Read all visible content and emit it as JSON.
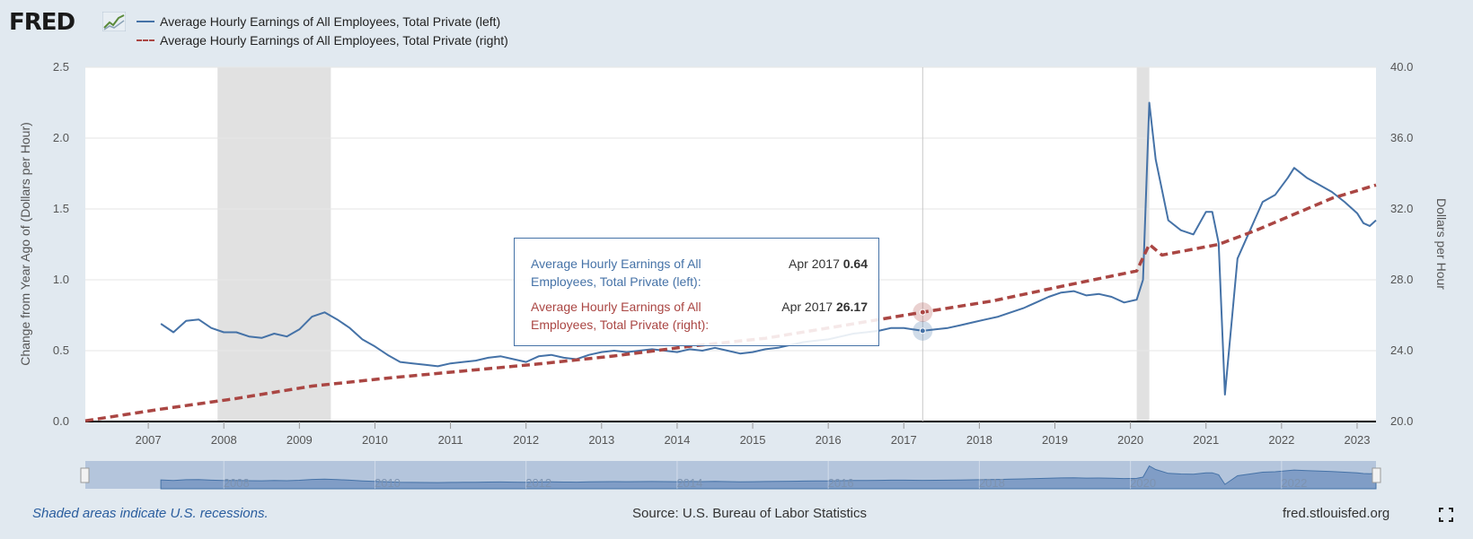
{
  "brand": "FRED",
  "legend": [
    {
      "label": "Average Hourly Earnings of All Employees, Total Private (left)",
      "color": "#4572a7",
      "dash": "solid"
    },
    {
      "label": "Average Hourly Earnings of All Employees, Total Private (right)",
      "color": "#aa4643",
      "dash": "dashed"
    }
  ],
  "chart_data": {
    "type": "line",
    "x_tick_labels": [
      "2007",
      "2008",
      "2009",
      "2010",
      "2011",
      "2012",
      "2013",
      "2014",
      "2015",
      "2016",
      "2017",
      "2018",
      "2019",
      "2020",
      "2021",
      "2022",
      "2023"
    ],
    "y_left": {
      "label": "Change from Year Ago of (Dollars per Hour)",
      "ticks": [
        "0.0",
        "0.5",
        "1.0",
        "1.5",
        "2.0",
        "2.5"
      ],
      "range": [
        0,
        2.5
      ]
    },
    "y_right": {
      "label": "Dollars per Hour",
      "ticks": [
        "20.0",
        "24.0",
        "28.0",
        "32.0",
        "36.0",
        "40.0"
      ],
      "range": [
        20,
        40
      ]
    },
    "x_range": [
      "2006-03",
      "2023-04"
    ],
    "recessions": [
      [
        "2007-12",
        "2009-06"
      ],
      [
        "2020-02",
        "2020-04"
      ]
    ],
    "series": [
      {
        "name": "Average Hourly Earnings of All Employees, Total Private (left)",
        "axis": "left",
        "color": "#4572a7",
        "points": [
          [
            "2007-03",
            0.69
          ],
          [
            "2007-05",
            0.63
          ],
          [
            "2007-07",
            0.71
          ],
          [
            "2007-09",
            0.72
          ],
          [
            "2007-11",
            0.66
          ],
          [
            "2008-01",
            0.63
          ],
          [
            "2008-03",
            0.63
          ],
          [
            "2008-05",
            0.6
          ],
          [
            "2008-07",
            0.59
          ],
          [
            "2008-09",
            0.62
          ],
          [
            "2008-11",
            0.6
          ],
          [
            "2009-01",
            0.65
          ],
          [
            "2009-03",
            0.74
          ],
          [
            "2009-05",
            0.77
          ],
          [
            "2009-07",
            0.72
          ],
          [
            "2009-09",
            0.66
          ],
          [
            "2009-11",
            0.58
          ],
          [
            "2010-01",
            0.53
          ],
          [
            "2010-03",
            0.47
          ],
          [
            "2010-05",
            0.42
          ],
          [
            "2010-07",
            0.41
          ],
          [
            "2010-09",
            0.4
          ],
          [
            "2010-11",
            0.39
          ],
          [
            "2011-01",
            0.41
          ],
          [
            "2011-03",
            0.42
          ],
          [
            "2011-05",
            0.43
          ],
          [
            "2011-07",
            0.45
          ],
          [
            "2011-09",
            0.46
          ],
          [
            "2011-11",
            0.44
          ],
          [
            "2012-01",
            0.42
          ],
          [
            "2012-03",
            0.46
          ],
          [
            "2012-05",
            0.47
          ],
          [
            "2012-07",
            0.45
          ],
          [
            "2012-09",
            0.44
          ],
          [
            "2012-11",
            0.47
          ],
          [
            "2013-01",
            0.49
          ],
          [
            "2013-03",
            0.5
          ],
          [
            "2013-05",
            0.49
          ],
          [
            "2013-07",
            0.5
          ],
          [
            "2013-09",
            0.51
          ],
          [
            "2013-11",
            0.5
          ],
          [
            "2014-01",
            0.49
          ],
          [
            "2014-03",
            0.51
          ],
          [
            "2014-05",
            0.5
          ],
          [
            "2014-07",
            0.52
          ],
          [
            "2014-09",
            0.5
          ],
          [
            "2014-11",
            0.48
          ],
          [
            "2015-01",
            0.49
          ],
          [
            "2015-03",
            0.51
          ],
          [
            "2015-05",
            0.52
          ],
          [
            "2015-07",
            0.54
          ],
          [
            "2015-09",
            0.56
          ],
          [
            "2015-11",
            0.57
          ],
          [
            "2016-01",
            0.58
          ],
          [
            "2016-03",
            0.6
          ],
          [
            "2016-05",
            0.62
          ],
          [
            "2016-07",
            0.63
          ],
          [
            "2016-09",
            0.64
          ],
          [
            "2016-11",
            0.66
          ],
          [
            "2017-01",
            0.66
          ],
          [
            "2017-04",
            0.64
          ],
          [
            "2017-06",
            0.65
          ],
          [
            "2017-08",
            0.66
          ],
          [
            "2017-10",
            0.68
          ],
          [
            "2017-12",
            0.7
          ],
          [
            "2018-02",
            0.72
          ],
          [
            "2018-04",
            0.74
          ],
          [
            "2018-06",
            0.77
          ],
          [
            "2018-08",
            0.8
          ],
          [
            "2018-10",
            0.84
          ],
          [
            "2018-12",
            0.88
          ],
          [
            "2019-02",
            0.91
          ],
          [
            "2019-04",
            0.92
          ],
          [
            "2019-06",
            0.89
          ],
          [
            "2019-08",
            0.9
          ],
          [
            "2019-10",
            0.88
          ],
          [
            "2019-12",
            0.84
          ],
          [
            "2020-02",
            0.86
          ],
          [
            "2020-03",
            1.0
          ],
          [
            "2020-04",
            2.25
          ],
          [
            "2020-05",
            1.85
          ],
          [
            "2020-07",
            1.42
          ],
          [
            "2020-09",
            1.35
          ],
          [
            "2020-11",
            1.32
          ],
          [
            "2021-01",
            1.48
          ],
          [
            "2021-02",
            1.48
          ],
          [
            "2021-03",
            1.26
          ],
          [
            "2021-04",
            0.19
          ],
          [
            "2021-06",
            1.15
          ],
          [
            "2021-08",
            1.35
          ],
          [
            "2021-10",
            1.55
          ],
          [
            "2021-12",
            1.6
          ],
          [
            "2022-02",
            1.72
          ],
          [
            "2022-03",
            1.79
          ],
          [
            "2022-05",
            1.72
          ],
          [
            "2022-07",
            1.67
          ],
          [
            "2022-09",
            1.62
          ],
          [
            "2022-11",
            1.55
          ],
          [
            "2023-01",
            1.47
          ],
          [
            "2023-02",
            1.4
          ],
          [
            "2023-03",
            1.38
          ],
          [
            "2023-04",
            1.42
          ]
        ]
      },
      {
        "name": "Average Hourly Earnings of All Employees, Total Private (right)",
        "axis": "right",
        "color": "#aa4643",
        "points": [
          [
            "2006-03",
            20.04
          ],
          [
            "2007-03",
            20.7
          ],
          [
            "2008-03",
            21.3
          ],
          [
            "2009-03",
            22.0
          ],
          [
            "2010-03",
            22.45
          ],
          [
            "2011-03",
            22.85
          ],
          [
            "2012-03",
            23.25
          ],
          [
            "2013-03",
            23.7
          ],
          [
            "2014-03",
            24.25
          ],
          [
            "2015-03",
            24.7
          ],
          [
            "2016-03",
            25.4
          ],
          [
            "2017-04",
            26.17
          ],
          [
            "2018-03",
            26.8
          ],
          [
            "2019-03",
            27.7
          ],
          [
            "2020-02",
            28.5
          ],
          [
            "2020-04",
            30.0
          ],
          [
            "2020-06",
            29.4
          ],
          [
            "2021-03",
            30.0
          ],
          [
            "2021-09",
            30.8
          ],
          [
            "2022-03",
            31.7
          ],
          [
            "2022-09",
            32.6
          ],
          [
            "2023-04",
            33.35
          ]
        ]
      }
    ],
    "tooltip": {
      "date": "Apr 2017",
      "rows": [
        {
          "name": "Average Hourly Earnings of All Employees, Total Private (left):",
          "date": "Apr 2017",
          "value": "0.64"
        },
        {
          "name": "Average Hourly Earnings of All Employees, Total Private (right):",
          "date": "Apr 2017",
          "value": "26.17"
        }
      ]
    },
    "navigator_labels": [
      "2008",
      "2010",
      "2012",
      "2014",
      "2016",
      "2018",
      "2020",
      "2022"
    ]
  },
  "footer": {
    "recession_note": "Shaded areas indicate U.S. recessions.",
    "source": "Source: U.S. Bureau of Labor Statistics",
    "site": "fred.stlouisfed.org"
  },
  "icons": {
    "logo_chart": "fred-chart-icon",
    "fullscreen": "fullscreen-icon"
  }
}
